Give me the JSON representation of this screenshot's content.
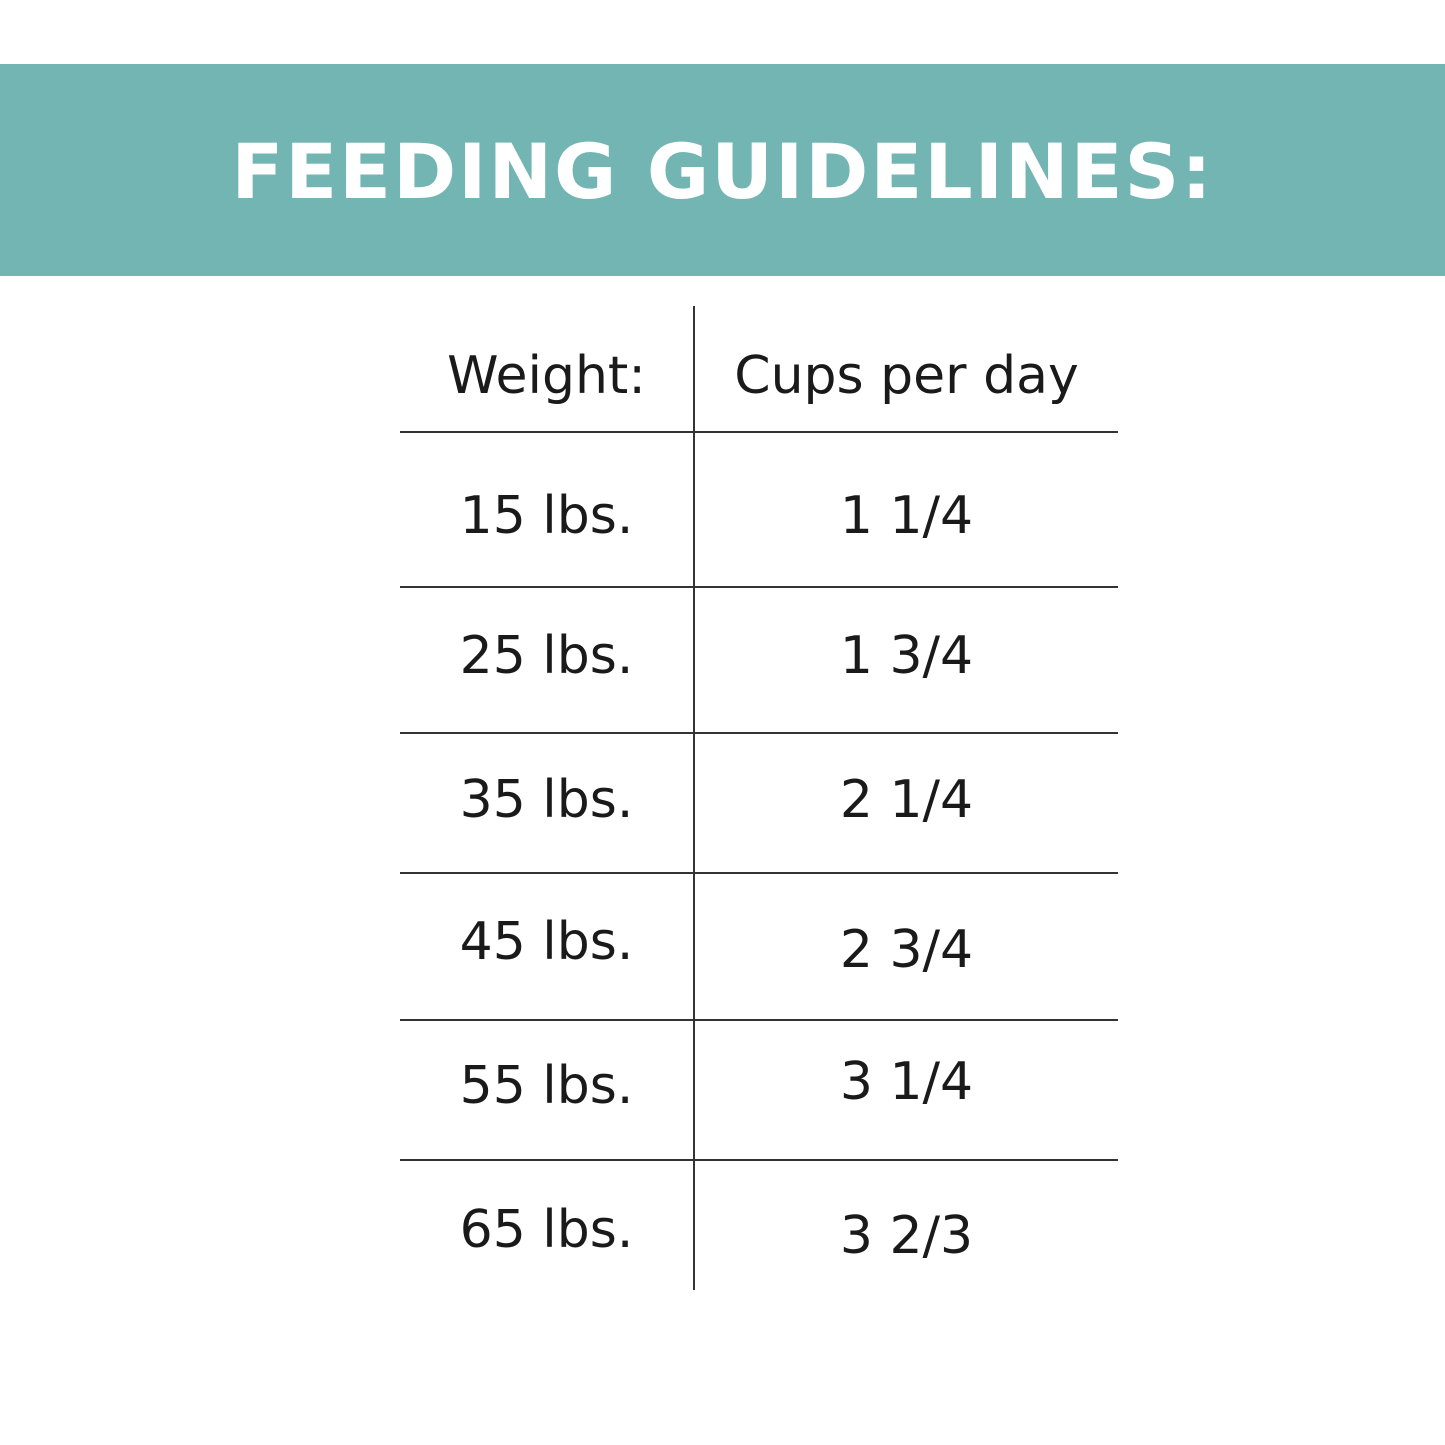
{
  "banner": {
    "title": "FEEDING GUIDELINES:",
    "background_color": "#72b5b3",
    "text_color": "#ffffff"
  },
  "table": {
    "headers": {
      "weight": "Weight:",
      "cups": "Cups per day"
    },
    "rows": [
      {
        "weight": "15 lbs.",
        "cups": "1 1/4"
      },
      {
        "weight": "25 lbs.",
        "cups": "1 3/4"
      },
      {
        "weight": "35 lbs.",
        "cups": "2 1/4"
      },
      {
        "weight": "45 lbs.",
        "cups": "2 3/4"
      },
      {
        "weight": "55 lbs.",
        "cups": "3 1/4"
      },
      {
        "weight": "65 lbs.",
        "cups": "3 2/3"
      }
    ]
  }
}
